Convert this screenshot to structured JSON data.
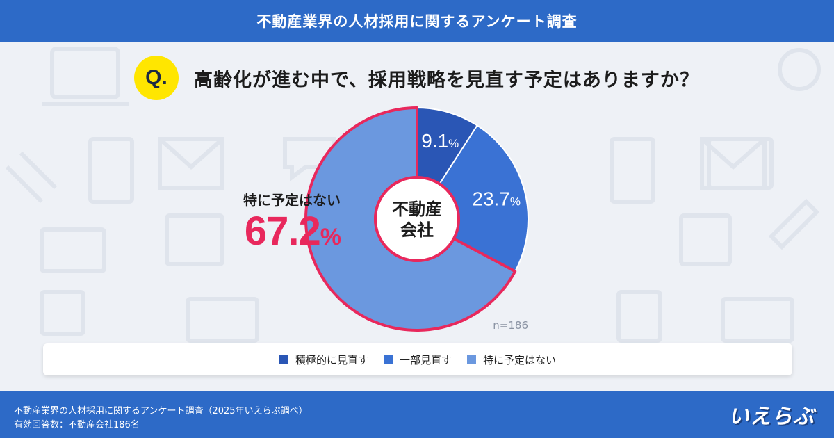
{
  "header": {
    "title": "不動産業界の人材採用に関するアンケート調査"
  },
  "question": {
    "badge": "Q.",
    "text": "高齢化が進む中で、採用戦略を見直す予定はありますか？"
  },
  "callout": {
    "label": "特に予定はない",
    "value": "67.2",
    "unit": "%"
  },
  "colors": {
    "dark_blue": "#2a56b5",
    "mid_blue": "#3a72d4",
    "light_blue": "#6b98df",
    "accent_pink": "#e8285c",
    "header_blue": "#2d6ac7"
  },
  "chart_data": {
    "type": "pie",
    "style": "donut",
    "center_label": [
      "不動産",
      "会社"
    ],
    "n_label": "n=186",
    "unit": "%",
    "slices": [
      {
        "name": "積極的に見直す",
        "value": 9.1,
        "color": "#2a56b5",
        "label": "9.1"
      },
      {
        "name": "一部見直す",
        "value": 23.7,
        "color": "#3a72d4",
        "label": "23.7"
      },
      {
        "name": "特に予定はない",
        "value": 67.2,
        "color": "#6b98df",
        "label": ""
      }
    ],
    "highlight": "特に予定はない",
    "legend_position": "bottom"
  },
  "legend": [
    {
      "label": "積極的に見直す",
      "color": "#2a56b5"
    },
    {
      "label": "一部見直す",
      "color": "#3a72d4"
    },
    {
      "label": "特に予定はない",
      "color": "#6b98df"
    }
  ],
  "footer": {
    "line1": "不動産業界の人材採用に関するアンケート調査（2025年いえらぶ調べ）",
    "line2": "有効回答数：不動産会社186名",
    "logo": "いえらぶ"
  }
}
